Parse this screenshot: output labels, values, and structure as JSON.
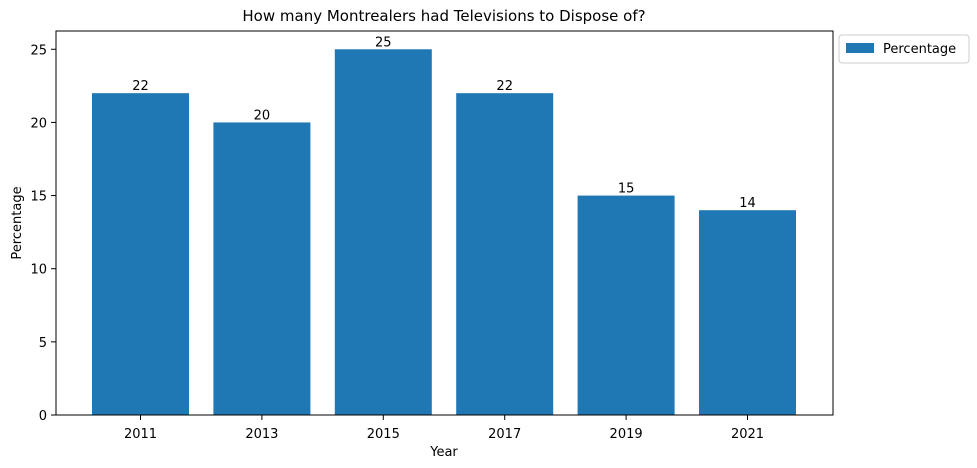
{
  "chart_data": {
    "type": "bar",
    "title": "How many Montrealers had Televisions to Dispose of?",
    "xlabel": "Year",
    "ylabel": "Percentage",
    "categories": [
      "2011",
      "2013",
      "2015",
      "2017",
      "2019",
      "2021"
    ],
    "series": [
      {
        "name": "Percentage",
        "values": [
          22,
          20,
          25,
          22,
          15,
          14
        ],
        "color": "#1f77b4"
      }
    ],
    "data_labels": [
      "22",
      "20",
      "25",
      "22",
      "15",
      "14"
    ],
    "ylim": [
      0,
      26.25
    ],
    "yticks": [
      0,
      5,
      10,
      15,
      20,
      25
    ],
    "grid": false,
    "legend": "outside-top-right"
  }
}
